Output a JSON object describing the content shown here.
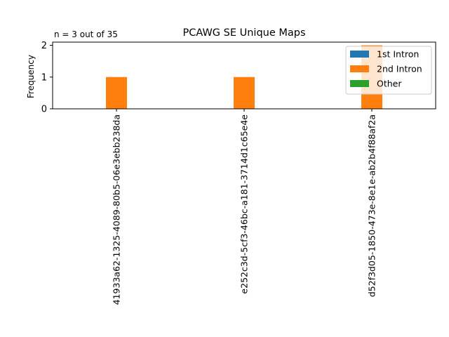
{
  "chart_data": {
    "type": "bar",
    "title": "PCAWG SE Unique Maps",
    "subtitle": "n = 3 out of 35",
    "xlabel": "",
    "ylabel": "Frequency",
    "ylim": [
      0,
      2.1
    ],
    "yticks": [
      0,
      1,
      2
    ],
    "grid": false,
    "legend_position": "top-right",
    "categories": [
      "41933a62-1325-4089-80b5-06e3ebb238da",
      "e252c3d-5cf3-46bc-a181-3714d1c65e4e",
      "d52f3d05-1850-473e-8e1e-ab2b4f88af2a"
    ],
    "series": [
      {
        "name": "1st Intron",
        "color": "#1f77b4",
        "values": [
          0,
          0,
          0
        ]
      },
      {
        "name": "2nd Intron",
        "color": "#ff7f0e",
        "values": [
          1,
          1,
          2
        ]
      },
      {
        "name": "Other",
        "color": "#2ca02c",
        "values": [
          0,
          0,
          0
        ]
      }
    ]
  }
}
